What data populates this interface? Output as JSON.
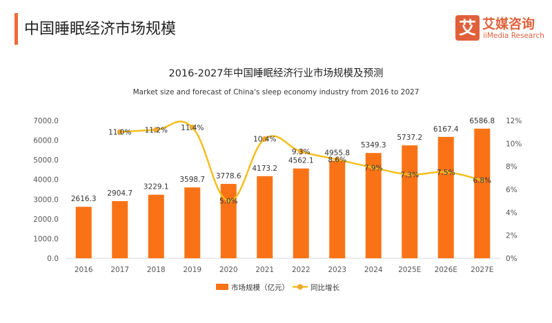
{
  "header": {
    "title": "中国睡眠经济市场规模"
  },
  "logo": {
    "cn": "艾媒咨询",
    "en": "iiMedia Research",
    "mark": "艾"
  },
  "chart_data": {
    "type": "bar+line",
    "title": "2016-2027年中国睡眠经济行业市场规模及预测",
    "subtitle": "Market size and forecast of China's sleep economy industry from 2016 to 2027",
    "categories": [
      "2016",
      "2017",
      "2018",
      "2019",
      "2020",
      "2021",
      "2022",
      "2023",
      "2024",
      "2025E",
      "2026E",
      "2027E"
    ],
    "series": [
      {
        "name": "市场规模（亿元）",
        "type": "bar",
        "axis": "left",
        "color": "#f97316",
        "values": [
          2616.3,
          2904.7,
          3229.1,
          3598.7,
          3778.6,
          4173.2,
          4562.1,
          4955.8,
          5349.3,
          5737.2,
          6167.4,
          6586.8
        ],
        "labels": [
          "2616.3",
          "2904.7",
          "3229.1",
          "3598.7",
          "3778.6",
          "4173.2",
          "4562.1",
          "4955.8",
          "5349.3",
          "5737.2",
          "6167.4",
          "6586.8"
        ]
      },
      {
        "name": "同比增长",
        "type": "line",
        "axis": "right",
        "color": "#f5be1d",
        "smooth": true,
        "values": [
          null,
          11.0,
          11.2,
          11.4,
          5.0,
          10.4,
          9.3,
          8.6,
          7.9,
          7.3,
          7.5,
          6.8
        ],
        "labels": [
          "",
          "11.0%",
          "11.2%",
          "11.4%",
          "5.0%",
          "10.4%",
          "9.3%",
          "8.6%",
          "7.9%",
          "7.3%",
          "7.5%",
          "6.8%"
        ]
      }
    ],
    "yleft": {
      "range": [
        0,
        7000
      ],
      "ticks": [
        "0.0",
        "1000.0",
        "2000.0",
        "3000.0",
        "4000.0",
        "5000.0",
        "6000.0",
        "7000.0"
      ]
    },
    "yright": {
      "range": [
        0,
        12
      ],
      "ticks": [
        "0%",
        "2%",
        "4%",
        "6%",
        "8%",
        "10%",
        "12%"
      ]
    },
    "grid": false,
    "legend": "bottom"
  }
}
